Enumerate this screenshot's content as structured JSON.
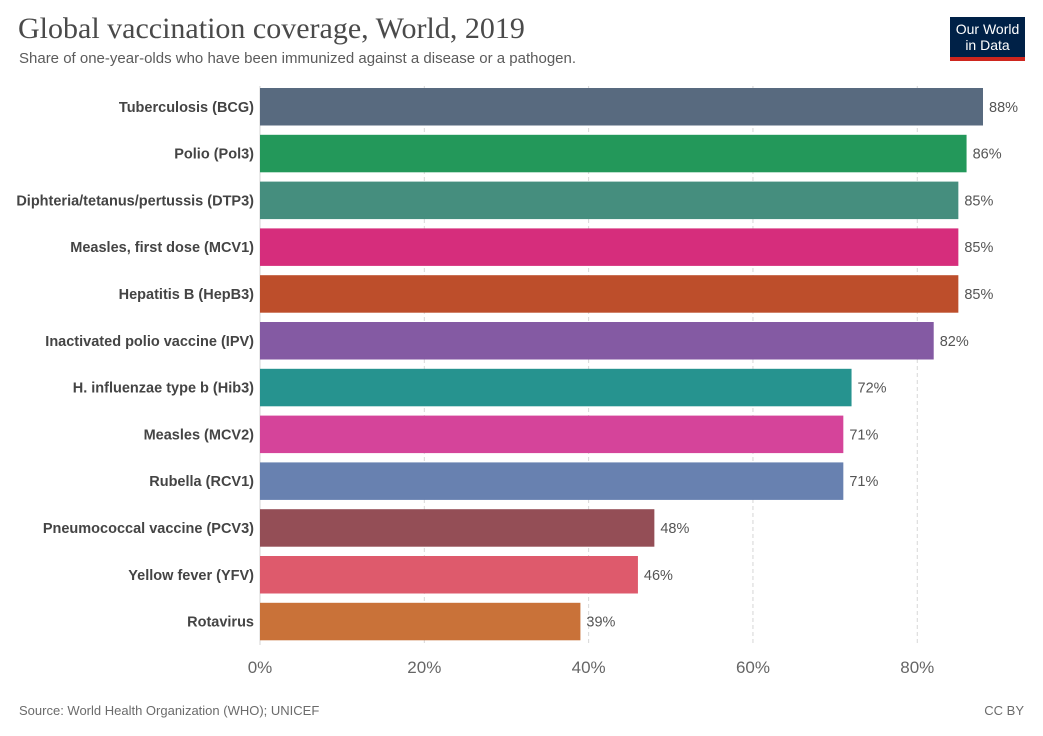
{
  "header": {
    "title": "Global vaccination coverage, World, 2019",
    "subtitle": "Share of one-year-olds who have been immunized against a disease or a pathogen."
  },
  "logo": {
    "line1": "Our World",
    "line2": "in Data"
  },
  "footer": {
    "source": "Source: World Health Organization (WHO); UNICEF",
    "license": "CC BY"
  },
  "chart_data": {
    "type": "bar",
    "orientation": "horizontal",
    "categories": [
      "Tuberculosis (BCG)",
      "Polio (Pol3)",
      "Diphteria/tetanus/pertussis (DTP3)",
      "Measles, first dose (MCV1)",
      "Hepatitis B (HepB3)",
      "Inactivated polio vaccine (IPV)",
      "H. influenzae type b (Hib3)",
      "Measles (MCV2)",
      "Rubella (RCV1)",
      "Pneumococcal vaccine (PCV3)",
      "Yellow fever (YFV)",
      "Rotavirus"
    ],
    "values": [
      88,
      86,
      85,
      85,
      85,
      82,
      72,
      71,
      71,
      48,
      46,
      39
    ],
    "value_labels": [
      "88%",
      "86%",
      "85%",
      "85%",
      "85%",
      "82%",
      "72%",
      "71%",
      "71%",
      "48%",
      "46%",
      "39%"
    ],
    "colors": [
      "#586a7f",
      "#23985a",
      "#458e7e",
      "#d62d7c",
      "#bd4e2b",
      "#845aa3",
      "#26938f",
      "#d5449a",
      "#6881b0",
      "#944e56",
      "#de5a6c",
      "#c97239"
    ],
    "xlim": [
      0,
      88
    ],
    "xticks": [
      0,
      20,
      40,
      60,
      80
    ],
    "xtick_labels": [
      "0%",
      "20%",
      "40%",
      "60%",
      "80%"
    ],
    "grid": true
  }
}
